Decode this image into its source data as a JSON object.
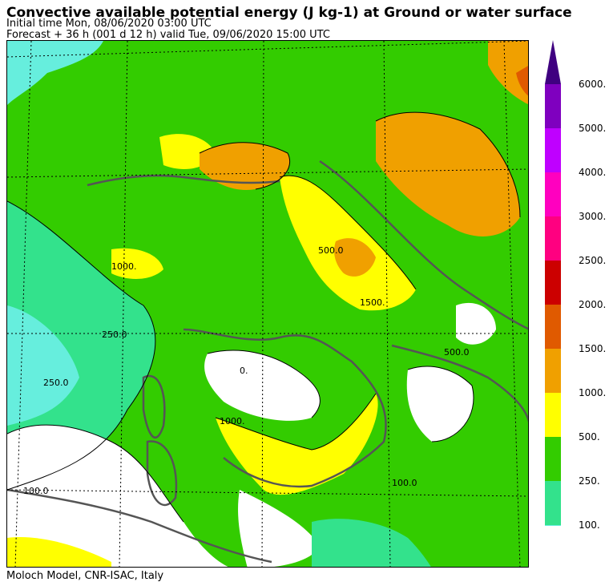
{
  "header": {
    "title": "Convective available potential energy (J kg-1) at Ground or water surface",
    "initial_time": "Initial time  Mon, 08/06/2020  03:00 UTC",
    "forecast": "Forecast  +  36 h  (001 d 12 h)  valid Tue, 09/06/2020 15:00 UTC"
  },
  "footer": {
    "credit": "Moloch Model, CNR-ISAC, Italy"
  },
  "colorbar": {
    "levels": [
      {
        "label": "6000.",
        "color": "#7f00bf"
      },
      {
        "label": "5000.",
        "color": "#bf00ff"
      },
      {
        "label": "4000.",
        "color": "#ff00bf"
      },
      {
        "label": "3000.",
        "color": "#ff0080"
      },
      {
        "label": "2500.",
        "color": "#cc0000"
      },
      {
        "label": "2000.",
        "color": "#e05a00"
      },
      {
        "label": "1500.",
        "color": "#f0a000"
      },
      {
        "label": "1000.",
        "color": "#ffff00"
      },
      {
        "label": "500.",
        "color": "#33cc00"
      },
      {
        "label": "250.",
        "color": "#33e28c"
      },
      {
        "label": "100.",
        "color": "#66eedd"
      }
    ],
    "arrow_color": "#3f0080"
  },
  "map": {
    "contour_labels": [
      "1000.",
      "1000.",
      "500.0",
      "500.0",
      "250.0",
      "250.0",
      "100.0",
      "100.0",
      "0.",
      "1500."
    ],
    "colors": {
      "white": "#ffffff",
      "cyan": "#66eedd",
      "mint": "#33e28c",
      "green": "#33cc00",
      "yellow": "#ffff00",
      "orange": "#f0a000",
      "darkorange": "#e05a00",
      "coast": "#555555",
      "contour": "#000000"
    }
  }
}
